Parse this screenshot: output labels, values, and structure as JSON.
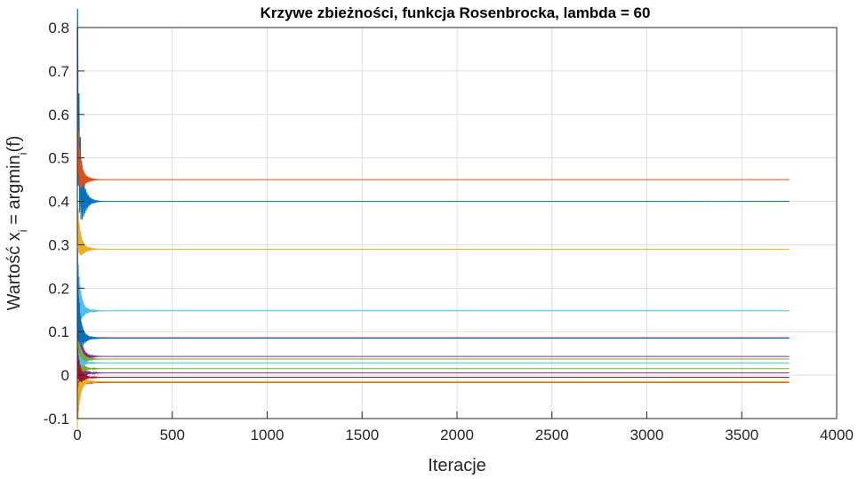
{
  "chart_data": {
    "type": "line",
    "title": "Krzywe zbieżności, funkcja Rosenbrocka, lambda = 60",
    "xlabel": "Iteracje",
    "ylabel": "Wartość x",
    "ylabel_sub1": "i",
    "ylabel_mid": " = argmin",
    "ylabel_sub2": "i",
    "ylabel_end": "(f)",
    "xlim": [
      0,
      4000
    ],
    "ylim": [
      -0.1,
      0.8
    ],
    "xticks": [
      0,
      500,
      1000,
      1500,
      2000,
      2500,
      3000,
      3500,
      4000
    ],
    "yticks": [
      -0.1,
      0,
      0.1,
      0.2,
      0.3,
      0.4,
      0.5,
      0.6,
      0.7,
      0.8
    ],
    "grid": true,
    "legend": "none",
    "iterations": 3750,
    "series": [
      {
        "start": 0.73,
        "final": 0.4,
        "color": "#0072BD"
      },
      {
        "start": 0.57,
        "final": 0.45,
        "color": "#D95319"
      },
      {
        "start": 0.37,
        "final": 0.29,
        "color": "#EDB120"
      },
      {
        "start": 0.15,
        "final": 0.043,
        "color": "#7E2F8E"
      },
      {
        "start": 0.1,
        "final": 0.037,
        "color": "#77AC30"
      },
      {
        "start": 0.25,
        "final": 0.148,
        "color": "#4DBEEE"
      },
      {
        "start": 0.12,
        "final": 0.086,
        "color": "#A2142F"
      },
      {
        "start": 0.2,
        "final": 0.085,
        "color": "#0072BD"
      },
      {
        "start": -0.05,
        "final": -0.017,
        "color": "#D95319"
      },
      {
        "start": -0.08,
        "final": -0.015,
        "color": "#EDB120"
      },
      {
        "start": 0.08,
        "final": 0.005,
        "color": "#7E2F8E"
      },
      {
        "start": 0.06,
        "final": 0.015,
        "color": "#77AC30"
      },
      {
        "start": 0.05,
        "final": 0.028,
        "color": "#4DBEEE"
      },
      {
        "start": 0.04,
        "final": -0.005,
        "color": "#A2142F"
      }
    ]
  }
}
